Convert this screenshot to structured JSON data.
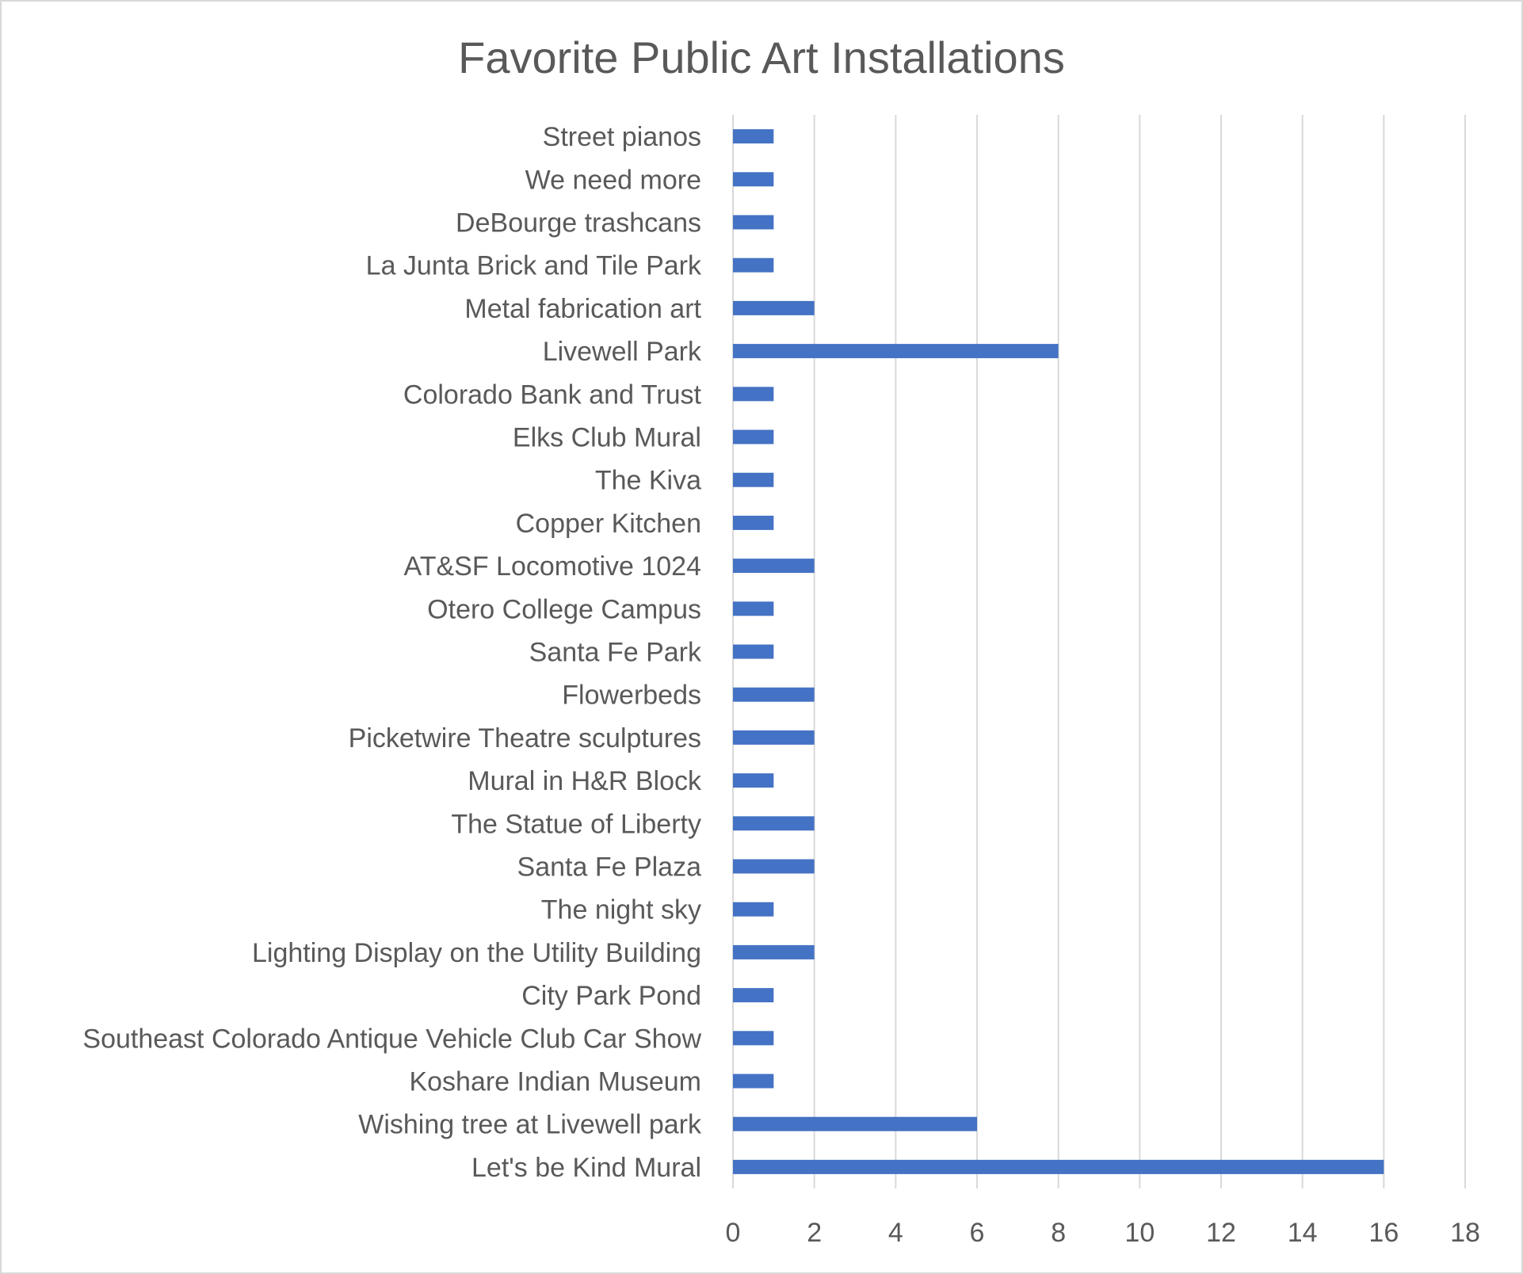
{
  "chart_data": {
    "type": "bar",
    "orientation": "horizontal",
    "title": "Favorite Public Art Installations",
    "xlabel": "",
    "ylabel": "",
    "xlim": [
      0,
      18
    ],
    "xticks": [
      0,
      2,
      4,
      6,
      8,
      10,
      12,
      14,
      16,
      18
    ],
    "grid": "vertical",
    "categories": [
      "Street pianos",
      "We need more",
      "DeBourge trashcans",
      "La Junta Brick and Tile Park",
      "Metal fabrication art",
      "Livewell Park",
      "Colorado Bank and Trust",
      "Elks Club Mural",
      "The Kiva",
      "Copper Kitchen",
      "AT&SF Locomotive 1024",
      "Otero College Campus",
      "Santa Fe Park",
      "Flowerbeds",
      "Picketwire Theatre sculptures",
      "Mural in H&R Block",
      "The Statue of Liberty",
      "Santa Fe Plaza",
      "The night sky",
      "Lighting Display on the Utility Building",
      "City Park Pond",
      "Southeast Colorado Antique Vehicle Club Car Show",
      "Koshare Indian Museum",
      "Wishing tree at Livewell park",
      "Let's be Kind Mural"
    ],
    "values": [
      1,
      1,
      1,
      1,
      2,
      8,
      1,
      1,
      1,
      1,
      2,
      1,
      1,
      2,
      2,
      1,
      2,
      2,
      1,
      2,
      1,
      1,
      1,
      6,
      16
    ],
    "bar_color": "#4472c4",
    "grid_color": "#d9d9d9",
    "text_color": "#595959"
  }
}
